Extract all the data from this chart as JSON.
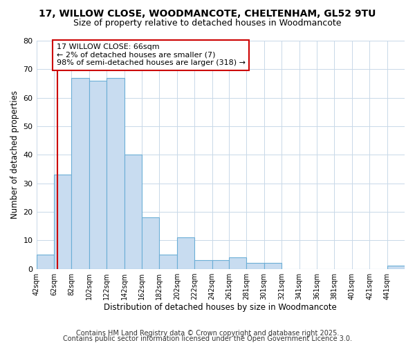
{
  "title1": "17, WILLOW CLOSE, WOODMANCOTE, CHELTENHAM, GL52 9TU",
  "title2": "Size of property relative to detached houses in Woodmancote",
  "xlabel": "Distribution of detached houses by size in Woodmancote",
  "ylabel": "Number of detached properties",
  "bin_edges": [
    42,
    62,
    82,
    102,
    122,
    142,
    162,
    182,
    202,
    222,
    242,
    261,
    281,
    301,
    321,
    341,
    361,
    381,
    401,
    421,
    441,
    461
  ],
  "bar_heights": [
    5,
    33,
    67,
    66,
    67,
    40,
    18,
    5,
    11,
    3,
    3,
    4,
    2,
    2,
    0,
    0,
    0,
    0,
    0,
    0,
    1
  ],
  "bar_color": "#c8dcf0",
  "bar_edgecolor": "#6baed6",
  "property_size": 66,
  "vline_color": "#cc0000",
  "annotation_text": "17 WILLOW CLOSE: 66sqm\n← 2% of detached houses are smaller (7)\n98% of semi-detached houses are larger (318) →",
  "annotation_box_edgecolor": "#cc0000",
  "annotation_box_facecolor": "white",
  "ylim": [
    0,
    80
  ],
  "yticks": [
    0,
    10,
    20,
    30,
    40,
    50,
    60,
    70,
    80
  ],
  "footer1": "Contains HM Land Registry data © Crown copyright and database right 2025.",
  "footer2": "Contains public sector information licensed under the Open Government Licence 3.0.",
  "bg_color": "white",
  "plot_bg_color": "white",
  "title_fontsize": 10,
  "subtitle_fontsize": 9,
  "axis_label_fontsize": 8.5,
  "tick_fontsize": 8,
  "annotation_fontsize": 8,
  "footer_fontsize": 7,
  "grid_color": "#c8d8e8"
}
